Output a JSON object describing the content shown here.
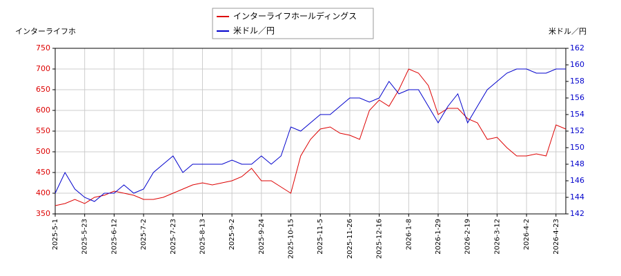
{
  "chart_data": {
    "type": "line",
    "ylabel": "インターライフホ",
    "y2label": "米ドル／円",
    "categories": [
      "2025-5-1",
      null,
      null,
      "2025-5-23",
      null,
      null,
      "2025-6-12",
      null,
      null,
      "2025-7-2",
      null,
      null,
      "2025-7-23",
      null,
      null,
      "2025-8-13",
      null,
      null,
      "2025-9-2",
      null,
      null,
      "2025-9-24",
      null,
      null,
      "2025-10-15",
      null,
      null,
      "2025-11-5",
      null,
      null,
      "2025-11-26",
      null,
      null,
      "2025-12-16",
      null,
      null,
      "2026-1-8",
      null,
      null,
      "2026-1-29",
      null,
      null,
      "2026-2-19",
      null,
      null,
      "2026-3-12",
      null,
      null,
      "2026-4-2",
      null,
      null,
      "2026-4-23",
      null
    ],
    "series": [
      {
        "name": "インターライフホールディングス",
        "color": "#dd0000",
        "values": [
          370,
          375,
          385,
          375,
          390,
          395,
          405,
          400,
          395,
          385,
          385,
          390,
          400,
          410,
          420,
          425,
          420,
          425,
          430,
          440,
          460,
          430,
          430,
          415,
          400,
          490,
          530,
          555,
          560,
          545,
          540,
          530,
          600,
          625,
          610,
          650,
          700,
          690,
          660,
          590,
          605,
          605,
          580,
          570,
          530,
          535,
          510,
          490,
          490,
          495,
          490,
          565,
          555
        ]
      },
      {
        "name": "米ドル／円",
        "color": "#0000cc",
        "axis": "y2",
        "values": [
          144.5,
          147,
          145,
          144,
          143.5,
          144.5,
          144.5,
          145.5,
          144.5,
          145,
          147,
          148,
          149,
          147,
          148,
          148,
          148,
          148,
          148.5,
          148,
          148,
          149,
          148,
          149,
          152.5,
          152,
          153,
          154,
          154,
          155,
          156,
          156,
          155.5,
          156,
          158,
          156.5,
          157,
          157,
          155,
          153,
          155,
          156.5,
          153,
          155,
          157,
          158,
          159,
          159.5,
          159.5,
          159,
          159,
          159.5,
          159.5
        ]
      }
    ],
    "ylim": [
      350,
      750
    ],
    "yticks": [
      350,
      400,
      450,
      500,
      550,
      600,
      650,
      700,
      750
    ],
    "y2lim": [
      142,
      162
    ],
    "y2ticks": [
      142,
      144,
      146,
      148,
      150,
      152,
      154,
      156,
      158,
      160,
      162
    ],
    "grid": true,
    "legend": "top"
  }
}
